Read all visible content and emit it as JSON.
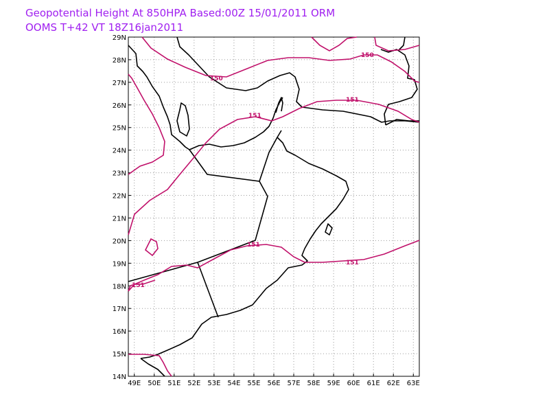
{
  "title": {
    "line1": "Geopotential Height At 850HPA Based:00Z 15/01/2011 ORM",
    "line2": "OOMS T+42 VT 18Z16jan2011",
    "color": "#a020f0"
  },
  "map": {
    "lon_range": [
      48.7,
      63.3
    ],
    "lat_range": [
      14,
      29
    ],
    "lat_labels": [
      "14N",
      "15N",
      "16N",
      "17N",
      "18N",
      "19N",
      "20N",
      "21N",
      "22N",
      "23N",
      "24N",
      "25N",
      "26N",
      "27N",
      "28N",
      "29N"
    ],
    "lon_labels": [
      "49E",
      "50E",
      "51E",
      "52E",
      "53E",
      "54E",
      "55E",
      "56E",
      "57E",
      "58E",
      "59E",
      "60E",
      "61E",
      "62E",
      "63E"
    ],
    "grid": "dotted",
    "coastline_color": "#000000",
    "contour_color": "#c0106a",
    "contour_labels": [
      "150",
      "150",
      "151",
      "151",
      "151",
      "151"
    ]
  }
}
